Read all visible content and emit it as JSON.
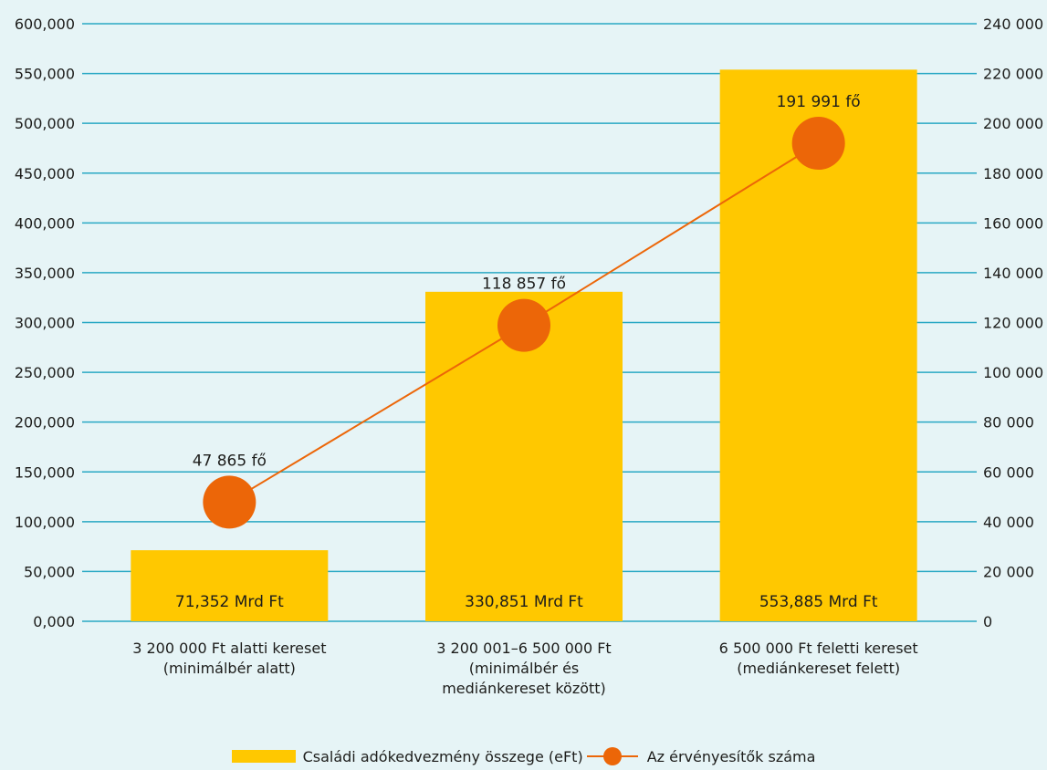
{
  "chart_data": {
    "type": "bar",
    "categories": [
      [
        "3 200 000 Ft alatti kereset",
        "(minimálbér alatt)"
      ],
      [
        "3 200 001–6 500 000 Ft",
        "(minimálbér és",
        "mediánkereset között)"
      ],
      [
        "6 500 000 Ft feletti kereset",
        "(mediánkereset felett)"
      ]
    ],
    "series": [
      {
        "name": "Családi adókedvezmény összege (eFt)",
        "type": "bar",
        "axis": "left",
        "values": [
          71352,
          330851,
          553885
        ],
        "data_labels": [
          "71,352 Mrd Ft",
          "330,851 Mrd Ft",
          "553,885 Mrd Ft"
        ]
      },
      {
        "name": "Az érvényesítők száma",
        "type": "line",
        "axis": "right",
        "values": [
          47865,
          118857,
          191991
        ],
        "data_labels": [
          "47 865 fő",
          "118 857 fő",
          "191 991 fő"
        ]
      }
    ],
    "left_axis": {
      "ylim": [
        0,
        600000
      ],
      "ticks": [
        0,
        50000,
        100000,
        150000,
        200000,
        250000,
        300000,
        350000,
        400000,
        450000,
        500000,
        550000,
        600000
      ],
      "tick_labels": [
        "0,000",
        "50,000",
        "100,000",
        "150,000",
        "200,000",
        "250,000",
        "300,000",
        "350,000",
        "400,000",
        "450,000",
        "500,000",
        "550,000",
        "600,000"
      ]
    },
    "right_axis": {
      "ylim": [
        0,
        240000
      ],
      "ticks": [
        0,
        20000,
        40000,
        60000,
        80000,
        100000,
        120000,
        140000,
        160000,
        180000,
        200000,
        220000,
        240000
      ],
      "tick_labels": [
        "0",
        "20 000",
        "40 000",
        "60 000",
        "80 000",
        "100 000",
        "120 000",
        "140 000",
        "160 000",
        "180 000",
        "200 000",
        "220 000",
        "240 000"
      ]
    },
    "grid": true,
    "legend_position": "bottom-center",
    "colors": {
      "bar": "#ffc800",
      "line": "#ec6608",
      "grid": "#29a8c4",
      "background": "#e6f4f6"
    }
  }
}
